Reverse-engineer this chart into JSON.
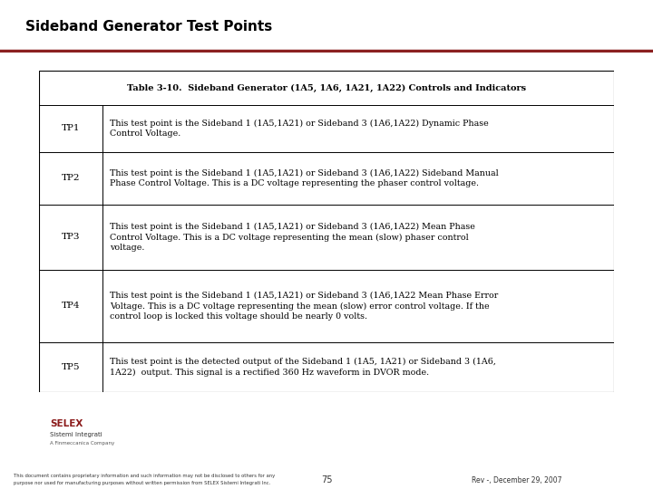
{
  "title": "Sideband Generator Test Points",
  "title_bg": "#e8e8e8",
  "title_line_color": "#8b2020",
  "table_title": "Table 3-10.  Sideband Generator (1A5, 1A6, 1A21, 1A22) Controls and Indicators",
  "rows": [
    {
      "tp": "TP1",
      "text": "This test point is the Sideband 1 (1A5,1A21) or Sideband 3 (1A6,1A22) Dynamic Phase\nControl Voltage."
    },
    {
      "tp": "TP2",
      "text": "This test point is the Sideband 1 (1A5,1A21) or Sideband 3 (1A6,1A22) Sideband Manual\nPhase Control Voltage. This is a DC voltage representing the phaser control voltage."
    },
    {
      "tp": "TP3",
      "text": "This test point is the Sideband 1 (1A5,1A21) or Sideband 3 (1A6,1A22) Mean Phase\nControl Voltage. This is a DC voltage representing the mean (slow) phaser control\nvoltage."
    },
    {
      "tp": "TP4",
      "text": "This test point is the Sideband 1 (1A5,1A21) or Sideband 3 (1A6,1A22 Mean Phase Error\nVoltage. This is a DC voltage representing the mean (slow) error control voltage. If the\ncontrol loop is locked this voltage should be nearly 0 volts."
    },
    {
      "tp": "TP5",
      "text": "This test point is the detected output of the Sideband 1 (1A5, 1A21) or Sideband 3 (1A6,\n1A22)  output. This signal is a rectified 360 Hz waveform in DVOR mode."
    }
  ],
  "footer_left_line1": "This document contains proprietary information and such information may not be disclosed to others for any",
  "footer_left_line2": "purpose nor used for manufacturing purposes without written permission from SELEX Sistemi Integrati Inc.",
  "footer_center": "75",
  "footer_right": "Rev -, December 29, 2007",
  "bg_color": "#ffffff",
  "table_border_color": "#000000"
}
